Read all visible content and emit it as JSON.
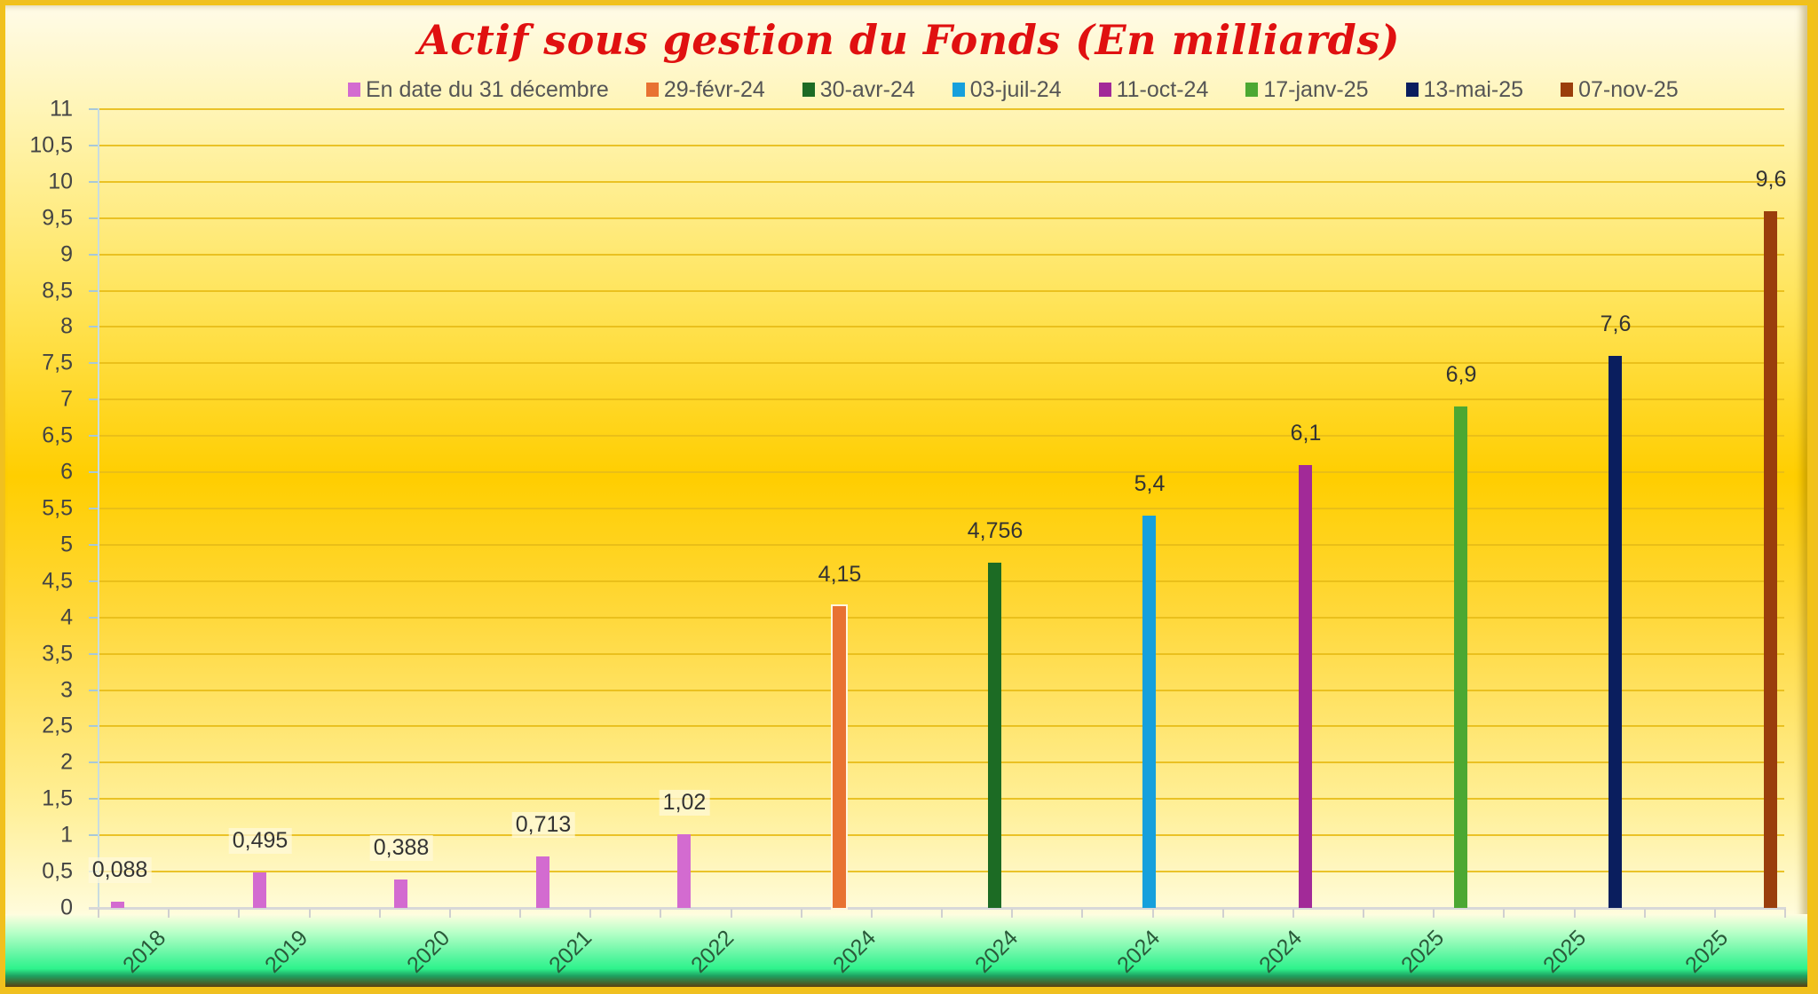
{
  "chart_data": {
    "type": "bar",
    "title": "Actif sous gestion du Fonds (En milliards)",
    "xlabel": "",
    "ylabel": "",
    "ylim": [
      0,
      11
    ],
    "ytick_step": 0.5,
    "grid": true,
    "legend_position": "top",
    "categories": [
      "2018",
      "2019",
      "2020",
      "2021",
      "2022",
      "2024",
      "2024",
      "2024",
      "2024",
      "2025",
      "2025",
      "2025"
    ],
    "values": [
      0.088,
      0.495,
      0.388,
      0.713,
      1.02,
      4.15,
      4.756,
      5.4,
      6.1,
      6.9,
      7.6,
      9.6
    ],
    "value_labels": [
      "0,088",
      "0,495",
      "0,388",
      "0,713",
      "1,02",
      "4,15",
      "4,756",
      "5,4",
      "6,1",
      "6,9",
      "7,6",
      "9,6"
    ],
    "yticks": [
      "0",
      "0,5",
      "1",
      "1,5",
      "2",
      "2,5",
      "3",
      "3,5",
      "4",
      "4,5",
      "5",
      "5,5",
      "6",
      "6,5",
      "7",
      "7,5",
      "8",
      "8,5",
      "9",
      "9,5",
      "10",
      "10,5",
      "11"
    ],
    "series": [
      {
        "name": "En date du 31 décembre",
        "color": "#d36bd0",
        "values": [
          0.088,
          0.495,
          0.388,
          0.713,
          1.02,
          null,
          null,
          null,
          null,
          null,
          null,
          null
        ]
      },
      {
        "name": "29-févr-24",
        "color": "#e87232",
        "values": [
          null,
          null,
          null,
          null,
          null,
          4.15,
          null,
          null,
          null,
          null,
          null,
          null
        ]
      },
      {
        "name": "30-avr-24",
        "color": "#1c6b24",
        "values": [
          null,
          null,
          null,
          null,
          null,
          null,
          4.756,
          null,
          null,
          null,
          null,
          null
        ]
      },
      {
        "name": "03-juil-24",
        "color": "#16a0dc",
        "values": [
          null,
          null,
          null,
          null,
          null,
          null,
          null,
          5.4,
          null,
          null,
          null,
          null
        ]
      },
      {
        "name": "11-oct-24",
        "color": "#a22a98",
        "values": [
          null,
          null,
          null,
          null,
          null,
          null,
          null,
          null,
          6.1,
          null,
          null,
          null
        ]
      },
      {
        "name": "17-janv-25",
        "color": "#4ca832",
        "values": [
          null,
          null,
          null,
          null,
          null,
          null,
          null,
          null,
          null,
          6.9,
          null,
          null
        ]
      },
      {
        "name": "13-mai-25",
        "color": "#0a1e5e",
        "values": [
          null,
          null,
          null,
          null,
          null,
          null,
          null,
          null,
          null,
          null,
          7.6,
          null
        ]
      },
      {
        "name": "07-nov-25",
        "color": "#9a3e0c",
        "values": [
          null,
          null,
          null,
          null,
          null,
          null,
          null,
          null,
          null,
          null,
          null,
          9.6
        ]
      }
    ]
  }
}
